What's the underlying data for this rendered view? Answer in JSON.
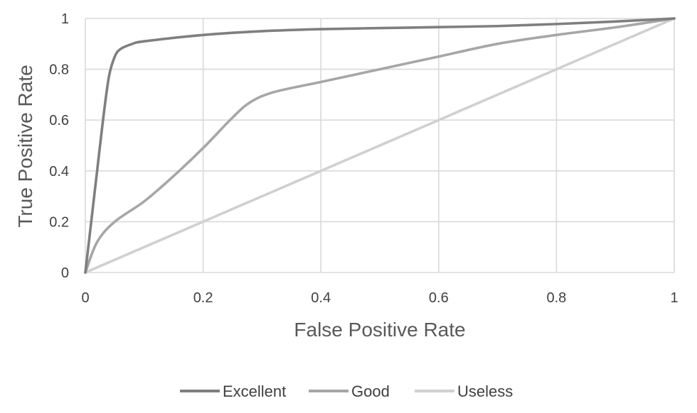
{
  "chart_data": {
    "type": "line",
    "xlabel": "False Positive Rate",
    "ylabel": "True Positive Rate",
    "xlim": [
      0,
      1
    ],
    "ylim": [
      0,
      1
    ],
    "xticks": [
      "0",
      "0.2",
      "0.4",
      "0.6",
      "0.8",
      "1"
    ],
    "yticks": [
      "0",
      "0.2",
      "0.4",
      "0.6",
      "0.8",
      "1"
    ],
    "grid": true,
    "legend_position": "bottom",
    "series": [
      {
        "name": "Excellent",
        "color": "#7f7f7f",
        "x": [
          0,
          0.01,
          0.02,
          0.03,
          0.04,
          0.05,
          0.06,
          0.08,
          0.1,
          0.2,
          0.3,
          0.4,
          0.5,
          0.6,
          0.7,
          0.8,
          0.9,
          1
        ],
        "y": [
          0,
          0.2,
          0.4,
          0.6,
          0.77,
          0.85,
          0.88,
          0.9,
          0.91,
          0.935,
          0.95,
          0.958,
          0.962,
          0.966,
          0.97,
          0.978,
          0.988,
          1
        ]
      },
      {
        "name": "Good",
        "color": "#a6a6a6",
        "x": [
          0,
          0.02,
          0.05,
          0.1,
          0.15,
          0.2,
          0.25,
          0.28,
          0.32,
          0.4,
          0.5,
          0.6,
          0.7,
          0.8,
          0.9,
          1
        ],
        "y": [
          0,
          0.12,
          0.2,
          0.28,
          0.38,
          0.49,
          0.61,
          0.67,
          0.71,
          0.75,
          0.8,
          0.85,
          0.9,
          0.935,
          0.965,
          1
        ]
      },
      {
        "name": "Useless",
        "color": "#d0d0d0",
        "x": [
          0,
          1
        ],
        "y": [
          0,
          1
        ]
      }
    ]
  }
}
